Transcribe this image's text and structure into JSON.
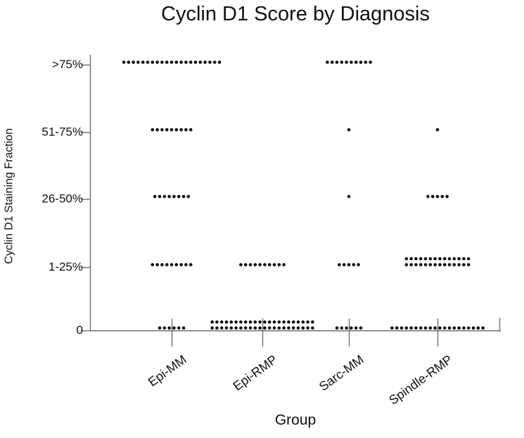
{
  "page": {
    "background": "#ffffff"
  },
  "chart_data": {
    "type": "scatter",
    "variant": "dot-plot",
    "title": "Cyclin D1 Score by Diagnosis",
    "xlabel": "Group",
    "ylabel": "Cyclin D1 Staining Fraction",
    "x_categories": [
      "Epi-MM",
      "Epi-RMP",
      "Sarc-MM",
      "Spindle-RMP"
    ],
    "y_categories": [
      "0",
      "1-25%",
      "26-50%",
      "51-75%",
      ">75%"
    ],
    "dot_color": "#0a0a0a",
    "axis_color": "#6e6e6e",
    "grid": "off",
    "legend": "none",
    "counts": {
      "Epi-MM": {
        ">75%": 21,
        "51-75%": 9,
        "26-50%": 8,
        "1-25%": 9,
        "0": 6
      },
      "Epi-RMP": {
        ">75%": 0,
        "51-75%": 0,
        "26-50%": 0,
        "1-25%": 10,
        "0": 44
      },
      "Sarc-MM": {
        ">75%": 10,
        "51-75%": 1,
        "26-50%": 1,
        "1-25%": 5,
        "0": 6
      },
      "Spindle-RMP": {
        ">75%": 0,
        "51-75%": 1,
        "26-50%": 5,
        "1-25%": 28,
        "0": 20
      }
    },
    "clusters": [
      {
        "group": "Epi-MM",
        "level": ">75%",
        "rows": [
          21
        ]
      },
      {
        "group": "Epi-MM",
        "level": "51-75%",
        "rows": [
          9
        ]
      },
      {
        "group": "Epi-MM",
        "level": "26-50%",
        "rows": [
          8
        ]
      },
      {
        "group": "Epi-MM",
        "level": "1-25%",
        "rows": [
          9
        ]
      },
      {
        "group": "Epi-MM",
        "level": "0",
        "rows": [
          6
        ]
      },
      {
        "group": "Epi-RMP",
        "level": "1-25%",
        "rows": [
          10
        ]
      },
      {
        "group": "Epi-RMP",
        "level": "0",
        "rows": [
          22,
          22
        ]
      },
      {
        "group": "Sarc-MM",
        "level": ">75%",
        "rows": [
          10
        ]
      },
      {
        "group": "Sarc-MM",
        "level": "51-75%",
        "rows": [
          1
        ]
      },
      {
        "group": "Sarc-MM",
        "level": "26-50%",
        "rows": [
          1
        ]
      },
      {
        "group": "Sarc-MM",
        "level": "1-25%",
        "rows": [
          5
        ]
      },
      {
        "group": "Sarc-MM",
        "level": "0",
        "rows": [
          6
        ]
      },
      {
        "group": "Spindle-RMP",
        "level": "51-75%",
        "rows": [
          1
        ]
      },
      {
        "group": "Spindle-RMP",
        "level": "26-50%",
        "rows": [
          5
        ]
      },
      {
        "group": "Spindle-RMP",
        "level": "1-25%",
        "rows": [
          14,
          14
        ]
      },
      {
        "group": "Spindle-RMP",
        "level": "0",
        "rows": [
          20
        ]
      }
    ]
  }
}
